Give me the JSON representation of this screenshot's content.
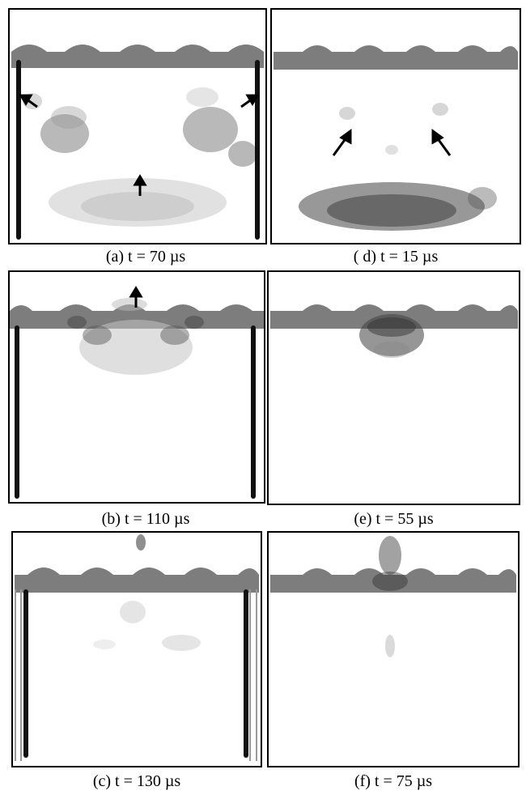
{
  "figure": {
    "panels": [
      {
        "id": "a",
        "caption": "(a) t = 70 µs",
        "side_walls": true,
        "double_walls": false
      },
      {
        "id": "d",
        "caption": "( d) t = 15 µs",
        "side_walls": false,
        "double_walls": false
      },
      {
        "id": "b",
        "caption": "(b) t = 110 µs",
        "side_walls": true,
        "double_walls": false
      },
      {
        "id": "e",
        "caption": "(e) t = 55 µs",
        "side_walls": false,
        "double_walls": false
      },
      {
        "id": "c",
        "caption": "(c) t = 130 µs",
        "side_walls": true,
        "double_walls": true
      },
      {
        "id": "f",
        "caption": "(f) t = 75 µs",
        "side_walls": false,
        "double_walls": false
      }
    ],
    "colors": {
      "frame": "#000000",
      "plate": "#7d7d7d",
      "wall": "#111111",
      "wave_dark": "#3a3a3a",
      "wave_light": "#b8b8b8",
      "arrow": "#000000"
    }
  }
}
